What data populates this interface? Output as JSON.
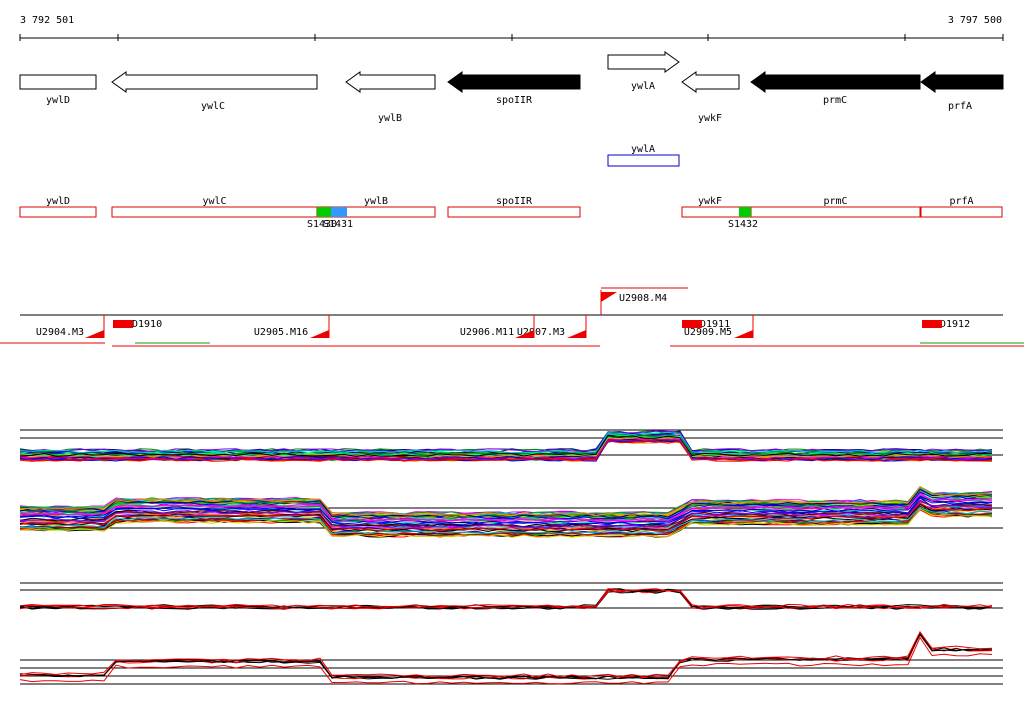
{
  "ruler": {
    "start": "3 792 501",
    "end": "3 797 500"
  },
  "genes": [
    "ywlD",
    "ywlC",
    "ywlB",
    "spoIIR",
    "ywlA",
    "ywkF",
    "prmC",
    "prfA"
  ],
  "predicted": [
    "ywlA"
  ],
  "transcripts": [
    "ywlD",
    "ywlC",
    "ywlB",
    "spoIIR",
    "ywkF",
    "prmC",
    "prfA"
  ],
  "sites": [
    "S1430",
    "S1431",
    "S1432"
  ],
  "features": [
    "U2904.M3",
    "D1910",
    "U2905.M16",
    "U2906.M11",
    "U2907.M3",
    "U2908.M4",
    "D1911",
    "U2909.M5",
    "D1912"
  ]
}
